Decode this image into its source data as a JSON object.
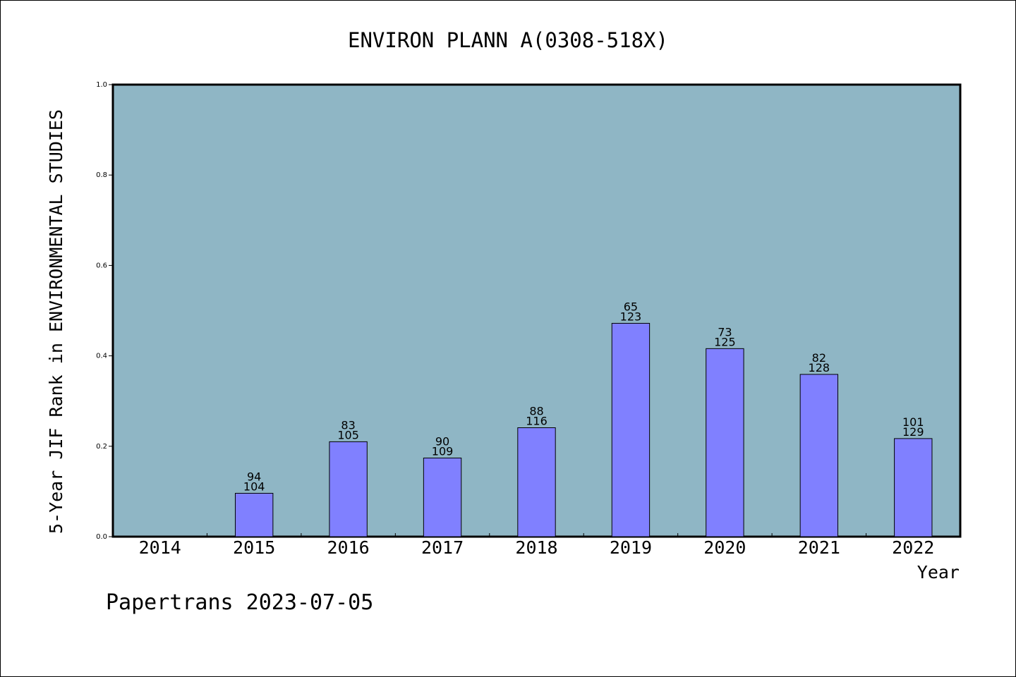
{
  "chart_data": {
    "type": "bar",
    "title": "ENVIRON PLANN A(0308-518X)",
    "xlabel": "Year",
    "ylabel": "5-Year JIF Rank in ENVIRONMENTAL STUDIES",
    "categories": [
      "2014",
      "2015",
      "2016",
      "2017",
      "2018",
      "2019",
      "2020",
      "2021",
      "2022"
    ],
    "values": [
      null,
      0.096,
      0.21,
      0.174,
      0.241,
      0.472,
      0.416,
      0.359,
      0.217
    ],
    "rank_labels": [
      "",
      "94",
      "83",
      "90",
      "88",
      "65",
      "73",
      "82",
      "101"
    ],
    "total_labels": [
      "",
      "104",
      "105",
      "109",
      "116",
      "123",
      "125",
      "128",
      "129"
    ],
    "ylim": [
      0,
      1.0
    ],
    "yticks": [
      "0.0",
      "0.2",
      "0.4",
      "0.6",
      "0.8",
      "1.0"
    ],
    "grid": false,
    "colors": {
      "plot_background": "#8fb6c5",
      "bar_fill": "#8080ff",
      "bar_stroke": "#000000"
    }
  },
  "footer": {
    "source": "Papertrans 2023-07-05"
  }
}
